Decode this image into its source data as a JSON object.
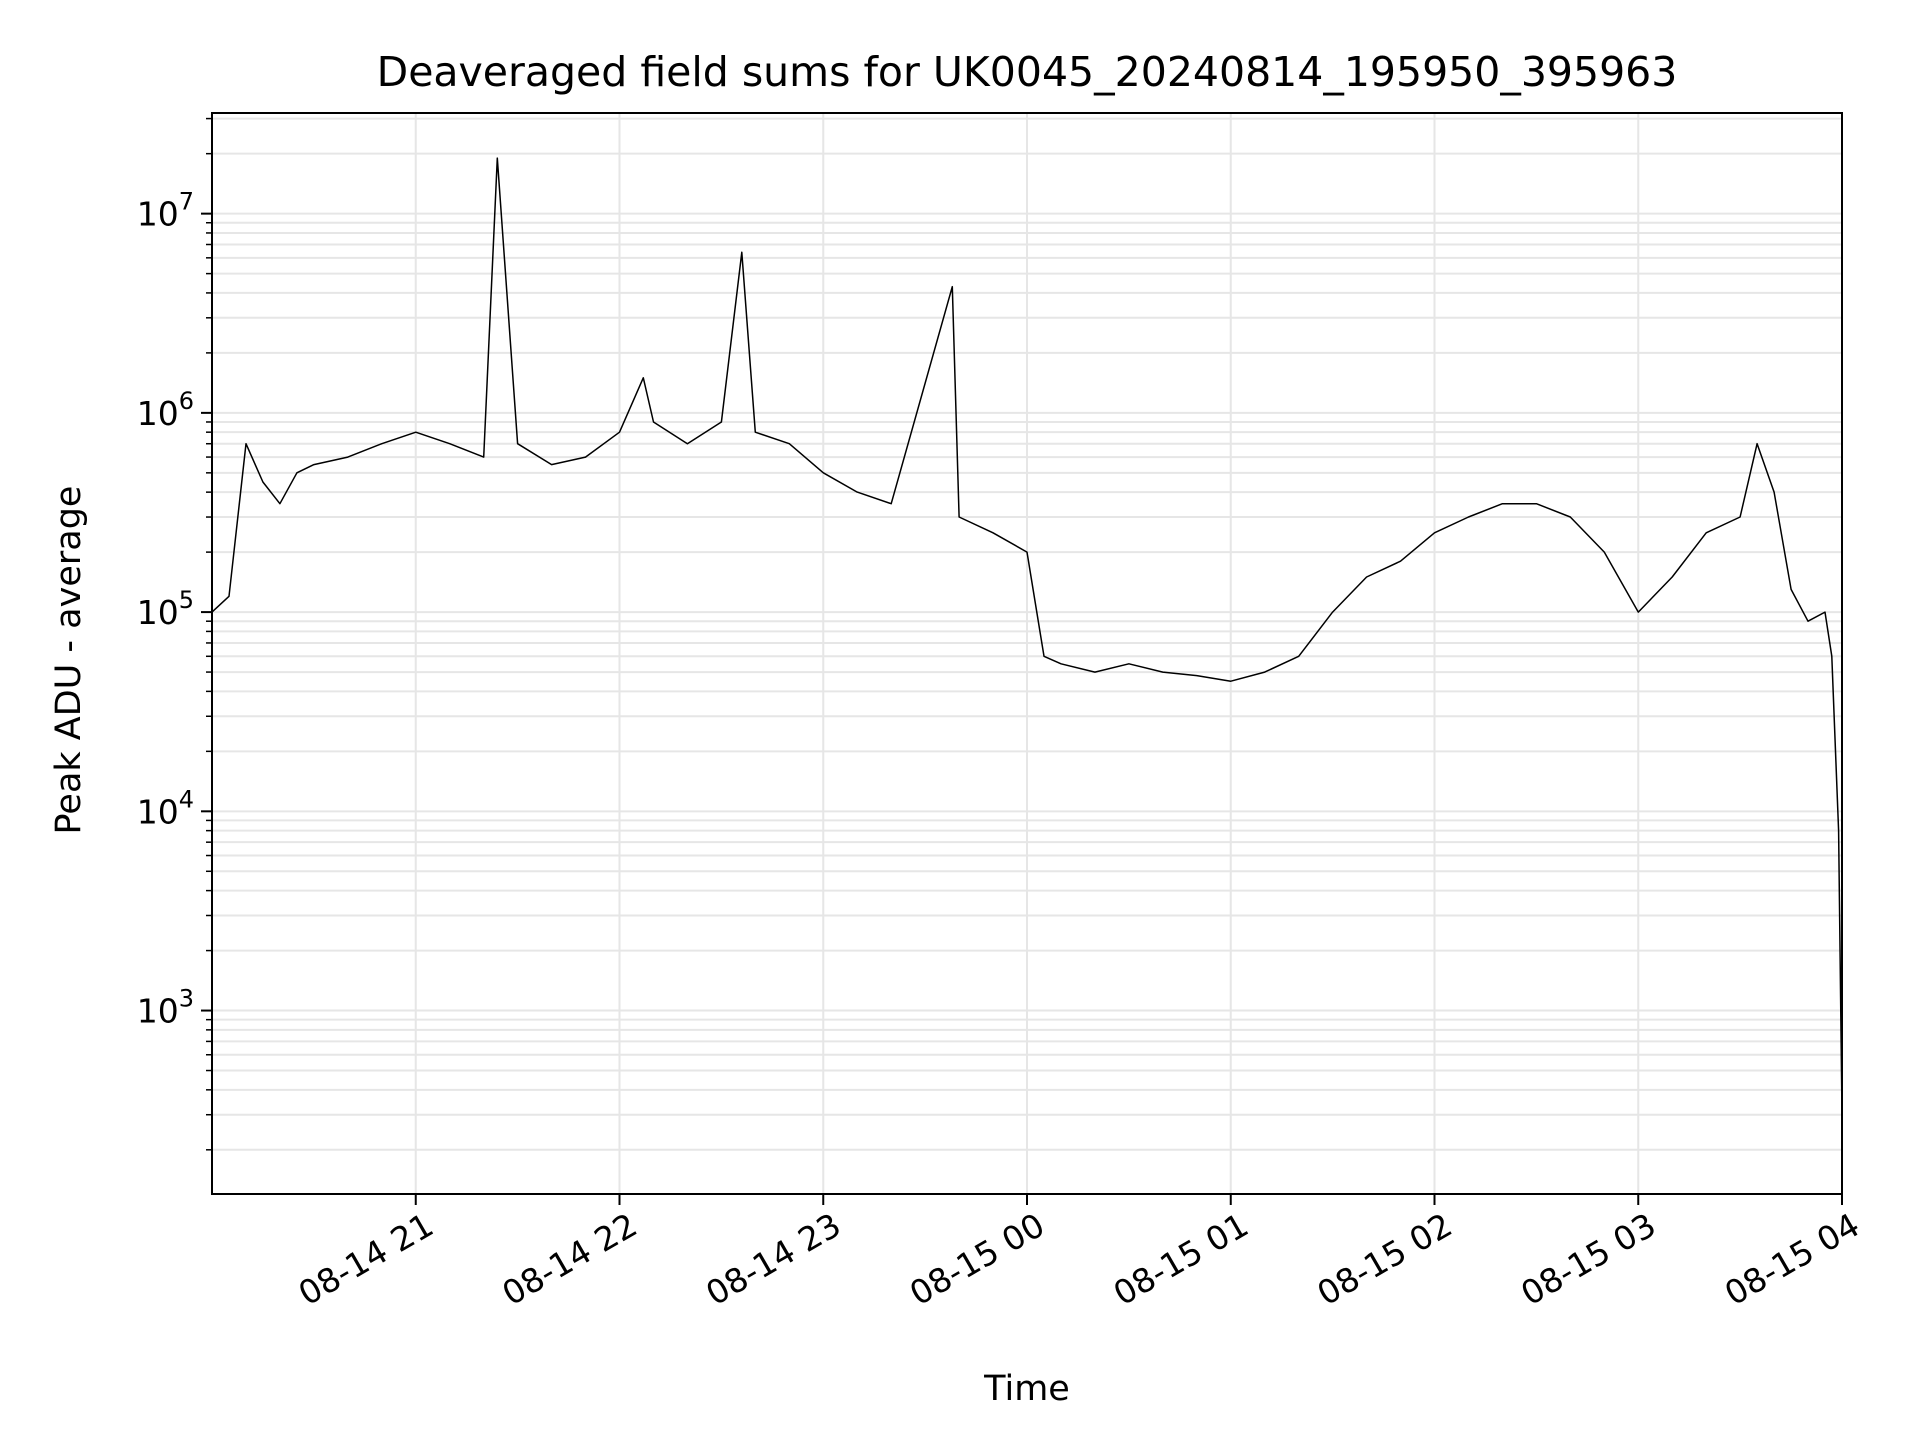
{
  "chart_data": {
    "type": "line",
    "title": "Deaveraged field sums for UK0045_20240814_195950_395963",
    "xlabel": "Time",
    "ylabel": "Peak ADU - average",
    "x_range": [
      "2024-08-14 20:00",
      "2024-08-15 04:00"
    ],
    "y_scale": "log",
    "y_range": [
      120,
      32000000
    ],
    "grid": true,
    "line_color": "#000000",
    "grid_color": "#e6e6e6",
    "x_ticks": [
      {
        "value": "2024-08-14 21:00",
        "label": "08-14 21"
      },
      {
        "value": "2024-08-14 22:00",
        "label": "08-14 22"
      },
      {
        "value": "2024-08-14 23:00",
        "label": "08-14 23"
      },
      {
        "value": "2024-08-15 00:00",
        "label": "08-15 00"
      },
      {
        "value": "2024-08-15 01:00",
        "label": "08-15 01"
      },
      {
        "value": "2024-08-15 02:00",
        "label": "08-15 02"
      },
      {
        "value": "2024-08-15 03:00",
        "label": "08-15 03"
      },
      {
        "value": "2024-08-15 04:00",
        "label": "08-15 04"
      }
    ],
    "y_ticks": [
      {
        "value": 1000,
        "base": "10",
        "exp": "3"
      },
      {
        "value": 10000,
        "base": "10",
        "exp": "4"
      },
      {
        "value": 100000,
        "base": "10",
        "exp": "5"
      },
      {
        "value": 1000000,
        "base": "10",
        "exp": "6"
      },
      {
        "value": 10000000,
        "base": "10",
        "exp": "7"
      }
    ],
    "series": [
      {
        "x": [
          "2024-08-14 20:00",
          "2024-08-14 20:05",
          "2024-08-14 20:10",
          "2024-08-14 20:15",
          "2024-08-14 20:20",
          "2024-08-14 20:25",
          "2024-08-14 20:30",
          "2024-08-14 20:40",
          "2024-08-14 20:50",
          "2024-08-14 21:00",
          "2024-08-14 21:10",
          "2024-08-14 21:20",
          "2024-08-14 21:24",
          "2024-08-14 21:30",
          "2024-08-14 21:40",
          "2024-08-14 21:50",
          "2024-08-14 22:00",
          "2024-08-14 22:07",
          "2024-08-14 22:10",
          "2024-08-14 22:20",
          "2024-08-14 22:30",
          "2024-08-14 22:36",
          "2024-08-14 22:40",
          "2024-08-14 22:50",
          "2024-08-14 23:00",
          "2024-08-14 23:10",
          "2024-08-14 23:20",
          "2024-08-14 23:38",
          "2024-08-14 23:40",
          "2024-08-14 23:50",
          "2024-08-15 00:00",
          "2024-08-15 00:05",
          "2024-08-15 00:10",
          "2024-08-15 00:20",
          "2024-08-15 00:30",
          "2024-08-15 00:40",
          "2024-08-15 00:50",
          "2024-08-15 01:00",
          "2024-08-15 01:10",
          "2024-08-15 01:20",
          "2024-08-15 01:30",
          "2024-08-15 01:40",
          "2024-08-15 01:50",
          "2024-08-15 02:00",
          "2024-08-15 02:10",
          "2024-08-15 02:20",
          "2024-08-15 02:30",
          "2024-08-15 02:40",
          "2024-08-15 02:50",
          "2024-08-15 03:00",
          "2024-08-15 03:10",
          "2024-08-15 03:20",
          "2024-08-15 03:30",
          "2024-08-15 03:35",
          "2024-08-15 03:40",
          "2024-08-15 03:45",
          "2024-08-15 03:50",
          "2024-08-15 03:55",
          "2024-08-15 03:57",
          "2024-08-15 03:59",
          "2024-08-15 04:00"
        ],
        "y": [
          100000,
          120000,
          700000,
          450000,
          350000,
          500000,
          550000,
          600000,
          700000,
          800000,
          700000,
          600000,
          19000000,
          700000,
          550000,
          600000,
          800000,
          1500000,
          900000,
          700000,
          900000,
          6400000,
          800000,
          700000,
          500000,
          400000,
          350000,
          4300000,
          300000,
          250000,
          200000,
          60000,
          55000,
          50000,
          55000,
          50000,
          48000,
          45000,
          50000,
          60000,
          100000,
          150000,
          180000,
          250000,
          300000,
          350000,
          350000,
          300000,
          200000,
          100000,
          150000,
          250000,
          300000,
          700000,
          400000,
          130000,
          90000,
          100000,
          60000,
          8000,
          300
        ]
      }
    ]
  }
}
